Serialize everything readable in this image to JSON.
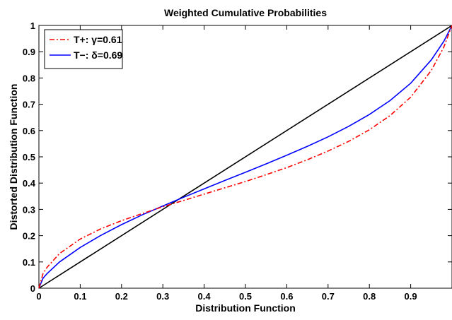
{
  "chart_data": {
    "type": "line",
    "title": "Weighted Cumulative Probabilities",
    "xlabel": "Distribution Function",
    "ylabel": "Distorted Distribution Function",
    "xlim": [
      0,
      1
    ],
    "ylim": [
      0,
      1
    ],
    "x_ticks": [
      "0",
      "0.1",
      "0.2",
      "0.3",
      "0.4",
      "0.5",
      "0.6",
      "0.7",
      "0.8",
      "0.9"
    ],
    "y_ticks": [
      "0",
      "0.1",
      "0.2",
      "0.3",
      "0.4",
      "0.5",
      "0.6",
      "0.7",
      "0.8",
      "0.9",
      "1"
    ],
    "legend_position": "top-left",
    "grid": false,
    "series": [
      {
        "name": "T+: γ=0.61",
        "color": "#ff0000",
        "style": "dash-dot",
        "x": [
          0,
          0.01,
          0.02,
          0.05,
          0.1,
          0.15,
          0.2,
          0.25,
          0.3,
          0.35,
          0.4,
          0.45,
          0.5,
          0.55,
          0.6,
          0.65,
          0.7,
          0.75,
          0.8,
          0.85,
          0.9,
          0.95,
          0.98,
          1.0
        ],
        "y": [
          0,
          0.056,
          0.08,
          0.132,
          0.187,
          0.226,
          0.257,
          0.284,
          0.31,
          0.334,
          0.358,
          0.382,
          0.406,
          0.432,
          0.459,
          0.489,
          0.522,
          0.559,
          0.603,
          0.657,
          0.727,
          0.829,
          0.917,
          1.0
        ]
      },
      {
        "name": "T−: δ=0.69",
        "color": "#0000ff",
        "style": "solid",
        "x": [
          0,
          0.01,
          0.02,
          0.05,
          0.1,
          0.15,
          0.2,
          0.25,
          0.3,
          0.35,
          0.4,
          0.45,
          0.5,
          0.55,
          0.6,
          0.65,
          0.7,
          0.75,
          0.8,
          0.85,
          0.9,
          0.95,
          0.98,
          1.0
        ],
        "y": [
          0,
          0.038,
          0.056,
          0.1,
          0.155,
          0.201,
          0.242,
          0.279,
          0.313,
          0.346,
          0.378,
          0.41,
          0.441,
          0.473,
          0.506,
          0.54,
          0.576,
          0.616,
          0.661,
          0.714,
          0.78,
          0.869,
          0.939,
          1.0
        ]
      },
      {
        "color": "#000000",
        "style": "solid",
        "x": [
          0,
          1
        ],
        "y": [
          0,
          1
        ]
      }
    ]
  }
}
